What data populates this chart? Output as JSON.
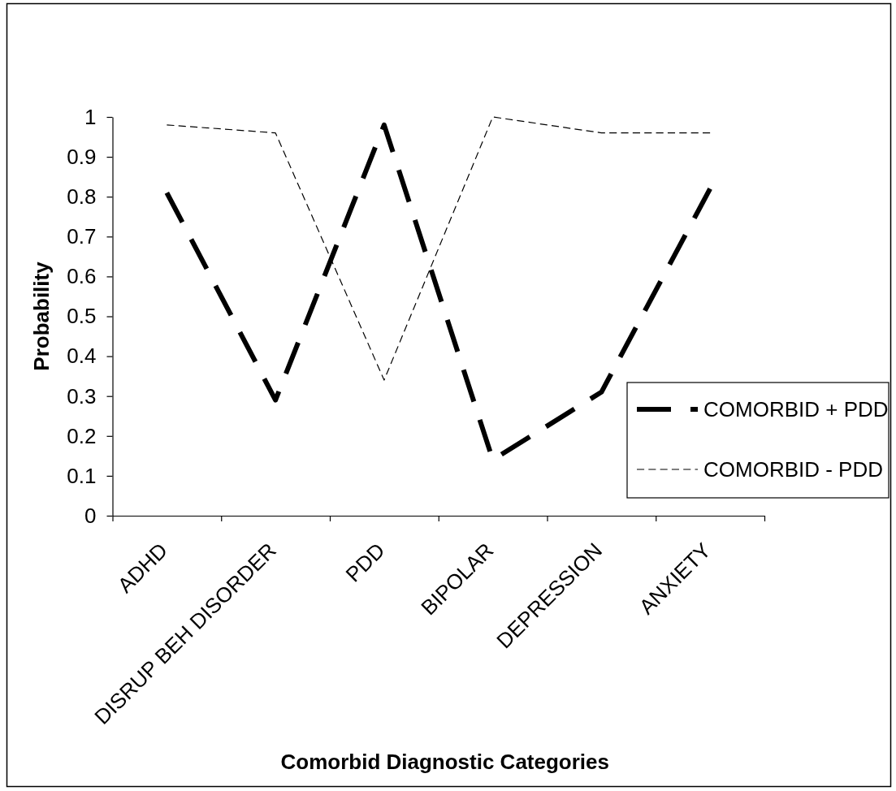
{
  "chart_data": {
    "type": "line",
    "xlabel": "Comorbid Diagnostic Categories",
    "ylabel": "Probability",
    "categories": [
      "ADHD",
      "DISRUP BEH DISORDER",
      "PDD",
      "BIPOLAR",
      "DEPRESSION",
      "ANXIETY"
    ],
    "series": [
      {
        "name": "COMORBID + PDD",
        "color": "#000000",
        "values": [
          0.81,
          0.29,
          0.98,
          0.14,
          0.31,
          0.82
        ]
      },
      {
        "name": "COMORBID - PDD",
        "color": "#000000",
        "values": [
          0.98,
          0.96,
          0.34,
          1.0,
          0.96,
          0.96
        ]
      }
    ],
    "ylim": [
      0,
      1
    ],
    "yticks": [
      0,
      0.1,
      0.2,
      0.3,
      0.4,
      0.5,
      0.6,
      0.7,
      0.8,
      0.9,
      1
    ],
    "legend": "bottom right",
    "line_style": "dashed"
  }
}
